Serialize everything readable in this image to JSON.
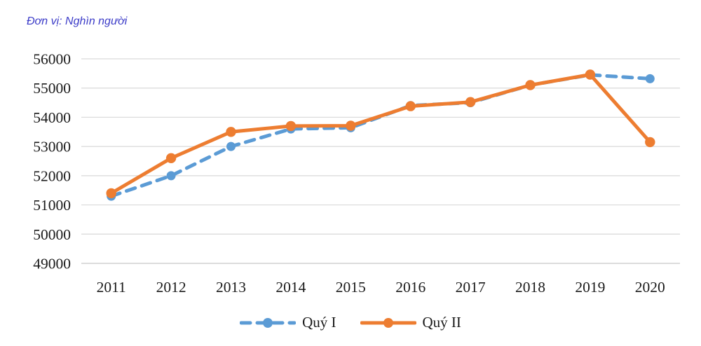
{
  "title": "Đơn vị: Nghìn người",
  "chart_data": {
    "type": "line",
    "title": "Đơn vị: Nghìn người",
    "categories": [
      "2011",
      "2012",
      "2013",
      "2014",
      "2015",
      "2016",
      "2017",
      "2018",
      "2019",
      "2020"
    ],
    "series": [
      {
        "name": "Quý I",
        "color": "#5B9BD5",
        "line_style": "dashed",
        "marker": "circle",
        "values": [
          51300,
          52000,
          53000,
          53600,
          53640,
          54400,
          54500,
          55100,
          55450,
          55320
        ]
      },
      {
        "name": "Quý II",
        "color": "#ED7D31",
        "line_style": "solid",
        "marker": "circle",
        "values": [
          51400,
          52600,
          53500,
          53700,
          53710,
          54380,
          54520,
          55100,
          55460,
          53150
        ]
      }
    ],
    "ylim": [
      49000,
      56000
    ],
    "yticks": [
      56000,
      55000,
      54000,
      53000,
      52000,
      51000,
      50000,
      49000
    ],
    "xlabel": "",
    "ylabel": "",
    "grid": "horizontal",
    "legend_position": "bottom"
  },
  "colors": {
    "title_text": "#3c3cc8",
    "gridline": "#d9d9d9",
    "axis_line": "#c6c6c6",
    "axis_text": "#1a1a1a",
    "series_quy_i": "#5B9BD5",
    "series_quy_ii": "#ED7D31",
    "background": "#ffffff"
  }
}
